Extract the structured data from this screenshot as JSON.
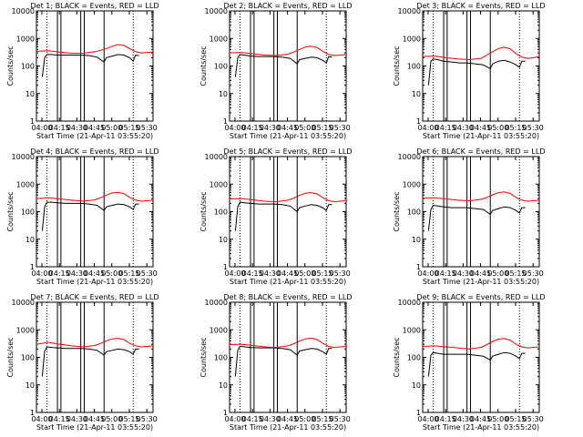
{
  "shared": {
    "ylabel": "Counts/sec",
    "xlabel_template": "Start Time (21-Apr-11 03:55:20)",
    "x_ticks": [
      "04:00",
      "04:15",
      "04:30",
      "04:45",
      "05:00",
      "05:15",
      "05:30"
    ],
    "y_ticks": [
      "1",
      "10",
      "100",
      "1000",
      "10000"
    ],
    "colors": {
      "events": "#000000",
      "lld": "#ff0000"
    }
  },
  "chart_data": [
    {
      "type": "line",
      "title": "Det 1; BLACK = Events, RED = LLD",
      "xlabel": "Start Time (21-Apr-11 03:55:20)",
      "ylabel": "Counts/sec",
      "x_unit": "minutes since 03:55:20",
      "xlim": [
        0,
        100
      ],
      "ylim": [
        1,
        10000
      ],
      "yscale": "log",
      "vlines_solid": [
        18,
        21,
        38,
        41,
        58
      ],
      "vlines_dotted": [
        9,
        83
      ],
      "series": [
        {
          "name": "Events",
          "color": "#000000",
          "x": [
            5,
            7,
            9,
            13,
            18,
            25,
            32,
            38,
            45,
            52,
            58,
            60,
            65,
            70,
            75,
            80,
            83,
            85,
            88
          ],
          "y": [
            40,
            200,
            260,
            260,
            250,
            250,
            250,
            250,
            240,
            210,
            140,
            200,
            230,
            260,
            250,
            200,
            150,
            250,
            240
          ]
        },
        {
          "name": "LLD",
          "color": "#ff0000",
          "x": [
            0,
            10,
            20,
            30,
            40,
            50,
            55,
            60,
            65,
            70,
            75,
            80,
            85,
            90,
            95,
            100
          ],
          "y": [
            340,
            360,
            320,
            290,
            290,
            330,
            370,
            430,
            520,
            600,
            560,
            420,
            330,
            300,
            310,
            320
          ]
        }
      ]
    },
    {
      "type": "line",
      "title": "Det 2; BLACK = Events, RED = LLD",
      "xlabel": "Start Time (21-Apr-11 03:55:20)",
      "ylabel": "Counts/sec",
      "x_unit": "minutes since 03:55:20",
      "xlim": [
        0,
        100
      ],
      "ylim": [
        1,
        10000
      ],
      "yscale": "log",
      "vlines_solid": [
        18,
        21,
        38,
        41,
        58
      ],
      "vlines_dotted": [
        9,
        83
      ],
      "series": [
        {
          "name": "Events",
          "color": "#000000",
          "x": [
            5,
            7,
            9,
            13,
            18,
            25,
            32,
            38,
            45,
            52,
            58,
            60,
            65,
            70,
            75,
            80,
            83,
            85,
            88
          ],
          "y": [
            40,
            200,
            260,
            250,
            230,
            220,
            220,
            220,
            210,
            190,
            120,
            170,
            190,
            210,
            200,
            160,
            130,
            220,
            210
          ]
        },
        {
          "name": "LLD",
          "color": "#ff0000",
          "x": [
            0,
            10,
            20,
            30,
            40,
            50,
            55,
            60,
            65,
            70,
            75,
            80,
            85,
            90,
            95,
            100
          ],
          "y": [
            300,
            310,
            280,
            250,
            240,
            270,
            320,
            400,
            490,
            520,
            470,
            340,
            260,
            240,
            250,
            260
          ]
        }
      ]
    },
    {
      "type": "line",
      "title": "Det 3; BLACK = Events, RED = LLD",
      "xlabel": "Start Time (21-Apr-11 03:55:20)",
      "ylabel": "Counts/sec",
      "x_unit": "minutes since 03:55:20",
      "xlim": [
        0,
        100
      ],
      "ylim": [
        1,
        10000
      ],
      "yscale": "log",
      "vlines_solid": [
        18,
        21,
        38,
        41,
        58
      ],
      "vlines_dotted": [
        9,
        83
      ],
      "series": [
        {
          "name": "Events",
          "color": "#000000",
          "x": [
            5,
            7,
            9,
            13,
            18,
            25,
            32,
            38,
            45,
            52,
            58,
            60,
            65,
            70,
            75,
            80,
            83,
            85,
            88
          ],
          "y": [
            20,
            150,
            180,
            170,
            150,
            140,
            130,
            130,
            120,
            110,
            80,
            120,
            150,
            160,
            140,
            110,
            90,
            150,
            150
          ]
        },
        {
          "name": "LLD",
          "color": "#ff0000",
          "x": [
            0,
            10,
            20,
            30,
            40,
            50,
            55,
            60,
            65,
            70,
            75,
            80,
            85,
            90,
            95,
            100
          ],
          "y": [
            220,
            230,
            200,
            180,
            170,
            190,
            250,
            330,
            430,
            480,
            420,
            280,
            210,
            190,
            200,
            220
          ]
        }
      ]
    },
    {
      "type": "line",
      "title": "Det 4; BLACK = Events, RED = LLD",
      "xlabel": "Start Time (21-Apr-11 03:55:20)",
      "ylabel": "Counts/sec",
      "x_unit": "minutes since 03:55:20",
      "xlim": [
        0,
        100
      ],
      "ylim": [
        1,
        10000
      ],
      "yscale": "log",
      "vlines_solid": [
        18,
        21,
        38,
        41,
        58
      ],
      "vlines_dotted": [
        9,
        83
      ],
      "series": [
        {
          "name": "Events",
          "color": "#000000",
          "x": [
            5,
            7,
            9,
            13,
            18,
            25,
            32,
            38,
            45,
            52,
            58,
            60,
            65,
            70,
            75,
            80,
            83,
            85,
            88
          ],
          "y": [
            20,
            150,
            220,
            220,
            210,
            200,
            200,
            200,
            190,
            170,
            110,
            150,
            170,
            190,
            180,
            150,
            120,
            190,
            190
          ]
        },
        {
          "name": "LLD",
          "color": "#ff0000",
          "x": [
            0,
            10,
            20,
            30,
            40,
            50,
            55,
            60,
            65,
            70,
            75,
            80,
            85,
            90,
            95,
            100
          ],
          "y": [
            300,
            320,
            290,
            260,
            240,
            270,
            320,
            400,
            480,
            500,
            450,
            330,
            260,
            240,
            250,
            260
          ]
        }
      ]
    },
    {
      "type": "line",
      "title": "Det 5; BLACK = Events, RED = LLD",
      "xlabel": "Start Time (21-Apr-11 03:55:20)",
      "ylabel": "Counts/sec",
      "x_unit": "minutes since 03:55:20",
      "xlim": [
        0,
        100
      ],
      "ylim": [
        1,
        10000
      ],
      "yscale": "log",
      "vlines_solid": [
        18,
        21,
        38,
        41,
        58
      ],
      "vlines_dotted": [
        9,
        83
      ],
      "series": [
        {
          "name": "Events",
          "color": "#000000",
          "x": [
            5,
            7,
            9,
            13,
            18,
            25,
            32,
            38,
            45,
            52,
            58,
            60,
            65,
            70,
            75,
            80,
            83,
            85,
            88
          ],
          "y": [
            20,
            150,
            220,
            210,
            200,
            190,
            190,
            190,
            180,
            160,
            100,
            140,
            160,
            180,
            170,
            140,
            110,
            180,
            180
          ]
        },
        {
          "name": "LLD",
          "color": "#ff0000",
          "x": [
            0,
            10,
            20,
            30,
            40,
            50,
            55,
            60,
            65,
            70,
            75,
            80,
            85,
            90,
            95,
            100
          ],
          "y": [
            290,
            300,
            270,
            240,
            230,
            260,
            310,
            390,
            470,
            490,
            440,
            320,
            250,
            230,
            240,
            250
          ]
        }
      ]
    },
    {
      "type": "line",
      "title": "Det 6; BLACK = Events, RED = LLD",
      "xlabel": "Start Time (21-Apr-11 03:55:20)",
      "ylabel": "Counts/sec",
      "x_unit": "minutes since 03:55:20",
      "xlim": [
        0,
        100
      ],
      "ylim": [
        1,
        10000
      ],
      "yscale": "log",
      "vlines_solid": [
        18,
        21,
        38,
        41,
        58
      ],
      "vlines_dotted": [
        9,
        83
      ],
      "series": [
        {
          "name": "Events",
          "color": "#000000",
          "x": [
            5,
            7,
            9,
            13,
            18,
            25,
            32,
            38,
            45,
            52,
            58,
            60,
            65,
            70,
            75,
            80,
            83,
            85,
            88
          ],
          "y": [
            20,
            120,
            170,
            160,
            150,
            140,
            140,
            140,
            130,
            120,
            80,
            110,
            130,
            150,
            140,
            110,
            90,
            140,
            140
          ]
        },
        {
          "name": "LLD",
          "color": "#ff0000",
          "x": [
            0,
            10,
            20,
            30,
            40,
            50,
            55,
            60,
            65,
            70,
            75,
            80,
            85,
            90,
            95,
            100
          ],
          "y": [
            310,
            320,
            290,
            260,
            250,
            280,
            330,
            410,
            490,
            520,
            460,
            330,
            260,
            240,
            250,
            260
          ]
        }
      ]
    },
    {
      "type": "line",
      "title": "Det 7; BLACK = Events, RED = LLD",
      "xlabel": "Start Time (21-Apr-11 03:55:20)",
      "ylabel": "Counts/sec",
      "x_unit": "minutes since 03:55:20",
      "xlim": [
        0,
        100
      ],
      "ylim": [
        1,
        10000
      ],
      "yscale": "log",
      "vlines_solid": [
        18,
        21,
        38,
        41,
        58
      ],
      "vlines_dotted": [
        9,
        83
      ],
      "series": [
        {
          "name": "Events",
          "color": "#000000",
          "x": [
            5,
            7,
            9,
            13,
            18,
            25,
            32,
            38,
            45,
            52,
            58,
            60,
            65,
            70,
            75,
            80,
            83,
            85,
            88
          ],
          "y": [
            20,
            170,
            240,
            230,
            220,
            210,
            210,
            210,
            200,
            180,
            120,
            160,
            180,
            200,
            190,
            160,
            130,
            200,
            200
          ]
        },
        {
          "name": "LLD",
          "color": "#ff0000",
          "x": [
            0,
            10,
            20,
            30,
            40,
            50,
            55,
            60,
            65,
            70,
            75,
            80,
            85,
            90,
            95,
            100
          ],
          "y": [
            300,
            350,
            300,
            260,
            240,
            270,
            320,
            400,
            470,
            490,
            440,
            320,
            260,
            240,
            250,
            260
          ]
        }
      ]
    },
    {
      "type": "line",
      "title": "Det 8; BLACK = Events, RED = LLD",
      "xlabel": "Start Time (21-Apr-11 03:55:20)",
      "ylabel": "Counts/sec",
      "x_unit": "minutes since 03:55:20",
      "xlim": [
        0,
        100
      ],
      "ylim": [
        1,
        10000
      ],
      "yscale": "log",
      "vlines_solid": [
        18,
        21,
        38,
        41,
        58
      ],
      "vlines_dotted": [
        9,
        83
      ],
      "series": [
        {
          "name": "Events",
          "color": "#000000",
          "x": [
            5,
            7,
            9,
            13,
            18,
            25,
            32,
            38,
            45,
            52,
            58,
            60,
            65,
            70,
            75,
            80,
            83,
            85,
            88
          ],
          "y": [
            20,
            180,
            250,
            240,
            230,
            220,
            220,
            220,
            210,
            190,
            120,
            170,
            190,
            210,
            200,
            160,
            130,
            210,
            210
          ]
        },
        {
          "name": "LLD",
          "color": "#ff0000",
          "x": [
            0,
            10,
            20,
            30,
            40,
            50,
            55,
            60,
            65,
            70,
            75,
            80,
            85,
            90,
            95,
            100
          ],
          "y": [
            290,
            300,
            270,
            240,
            230,
            260,
            310,
            390,
            470,
            500,
            440,
            320,
            250,
            230,
            240,
            250
          ]
        }
      ]
    },
    {
      "type": "line",
      "title": "Det 9; BLACK = Events, RED = LLD",
      "xlabel": "Start Time (21-Apr-11 03:55:20)",
      "ylabel": "Counts/sec",
      "x_unit": "minutes since 03:55:20",
      "xlim": [
        0,
        100
      ],
      "ylim": [
        1,
        10000
      ],
      "yscale": "log",
      "vlines_solid": [
        18,
        21,
        38,
        41,
        58
      ],
      "vlines_dotted": [
        9,
        83
      ],
      "series": [
        {
          "name": "Events",
          "color": "#000000",
          "x": [
            5,
            7,
            9,
            13,
            18,
            25,
            32,
            38,
            45,
            52,
            58,
            60,
            65,
            70,
            75,
            80,
            83,
            85,
            88
          ],
          "y": [
            20,
            120,
            150,
            140,
            130,
            130,
            130,
            130,
            120,
            110,
            80,
            110,
            130,
            150,
            140,
            110,
            90,
            140,
            140
          ]
        },
        {
          "name": "LLD",
          "color": "#ff0000",
          "x": [
            0,
            10,
            20,
            30,
            40,
            50,
            55,
            60,
            65,
            70,
            75,
            80,
            85,
            90,
            95,
            100
          ],
          "y": [
            250,
            260,
            240,
            220,
            200,
            230,
            290,
            380,
            460,
            480,
            420,
            300,
            240,
            220,
            230,
            240
          ]
        }
      ]
    }
  ]
}
